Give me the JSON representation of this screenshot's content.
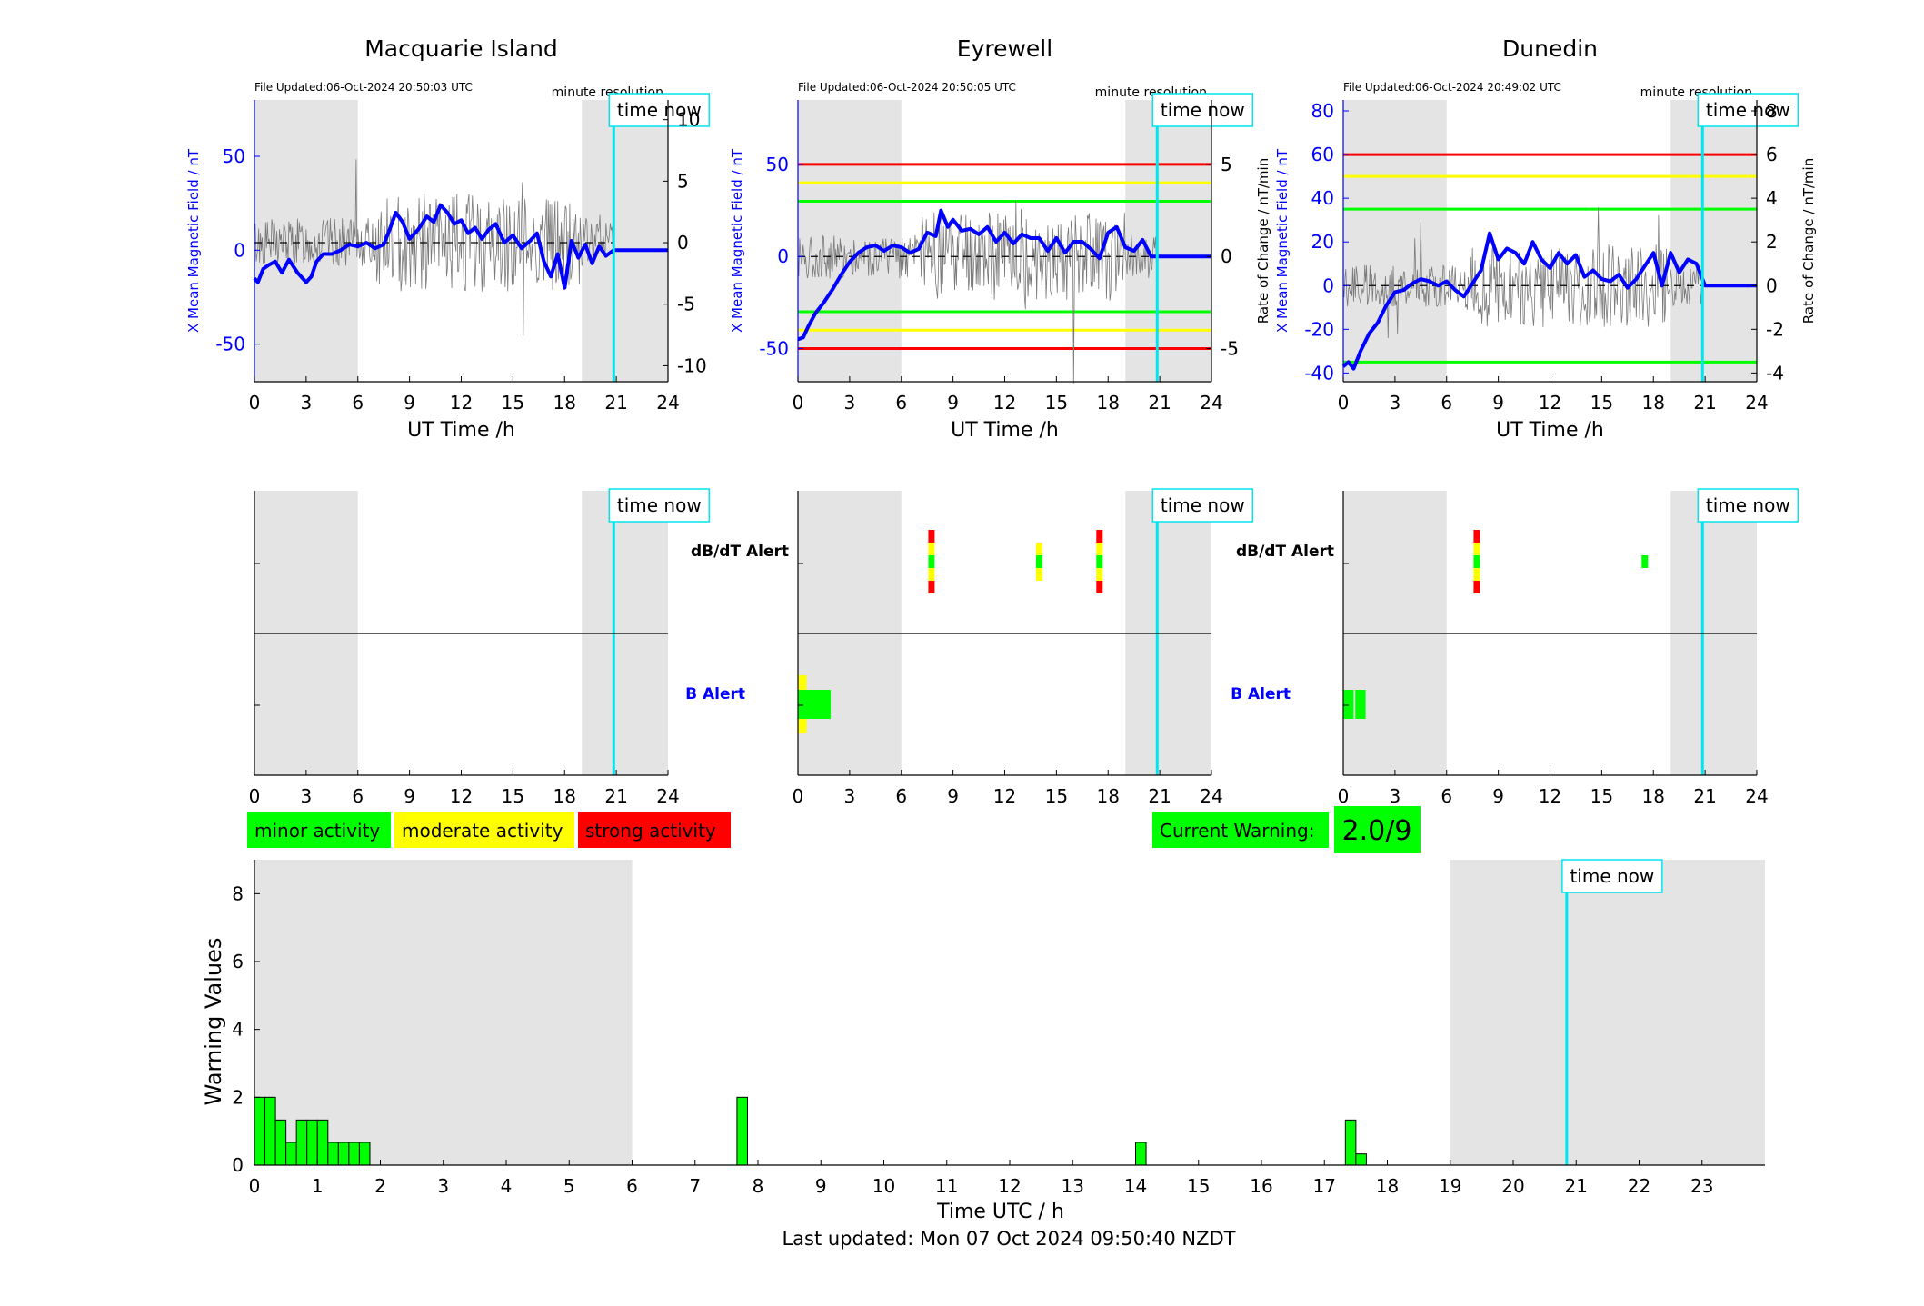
{
  "footer": "Last updated: Mon 07 Oct 2024 09:50:40 NZDT",
  "colors": {
    "night": "#e4e4e4",
    "mean_line": "#0000ff",
    "rate_line": "#7a7a7a",
    "now_line": "#00e5ee",
    "minor": "#00ff00",
    "moderate": "#ffff00",
    "strong": "#ff0000"
  },
  "time_now_label": "time now",
  "current_warning": {
    "label": "Current Warning:",
    "value": "2.0/9"
  },
  "legend": [
    "minor activity",
    "moderate activity",
    "strong activity"
  ],
  "chart_data": [
    {
      "type": "line",
      "title": "Macquarie Island",
      "file_updated": "File Updated:06-Oct-2024 20:50:03 UTC",
      "resolution": "minute resolution",
      "xlabel": "UT Time /h",
      "ylabel_left": "X Mean Magnetic Field / nT",
      "ylabel_right": "",
      "xlim": [
        0,
        24
      ],
      "xticks": [
        0,
        3,
        6,
        9,
        12,
        15,
        18,
        21,
        24
      ],
      "ylim": [
        -70,
        80
      ],
      "yticks": [
        -50,
        0,
        50
      ],
      "y2lim": [
        -11.3,
        11.6
      ],
      "y2ticks": [
        -10,
        -5,
        0,
        5,
        10
      ],
      "night_bands": [
        [
          0,
          6
        ],
        [
          19,
          24
        ]
      ],
      "time_now": 20.85,
      "thresholds": [],
      "series": [
        {
          "x": [
            0,
            0.2,
            0.5,
            0.8,
            1.2,
            1.6,
            2,
            2.5,
            3,
            3.3,
            3.6,
            4,
            4.5,
            5,
            5.5,
            6,
            6.5,
            7,
            7.5,
            7.8,
            8.2,
            8.6,
            9,
            9.5,
            10,
            10.4,
            10.8,
            11.2,
            11.6,
            12,
            12.4,
            12.8,
            13.2,
            13.6,
            14,
            14.5,
            15,
            15.5,
            16,
            16.4,
            16.8,
            17.2,
            17.6,
            18,
            18.4,
            18.8,
            19.2,
            19.6,
            20,
            20.4,
            20.85,
            24
          ],
          "y": [
            -15,
            -17,
            -10,
            -8,
            -6,
            -12,
            -5,
            -12,
            -17,
            -14,
            -6,
            -2,
            -2,
            0,
            3,
            2,
            4,
            1,
            3,
            10,
            20,
            15,
            6,
            11,
            18,
            15,
            24,
            20,
            14,
            16,
            9,
            12,
            6,
            11,
            14,
            4,
            8,
            1,
            5,
            9,
            -6,
            -14,
            -2,
            -20,
            5,
            -4,
            3,
            -7,
            2,
            -3,
            0,
            0
          ]
        }
      ],
      "rate_amplitude": 2.5
    },
    {
      "type": "line",
      "title": "Eyrewell",
      "file_updated": "File Updated:06-Oct-2024 20:50:05 UTC",
      "resolution": "minute resolution",
      "xlabel": "UT Time /h",
      "ylabel_left": "X Mean Magnetic Field / nT",
      "ylabel_right": "Rate of Change / nT/min",
      "xlim": [
        0,
        24
      ],
      "xticks": [
        0,
        3,
        6,
        9,
        12,
        15,
        18,
        21,
        24
      ],
      "ylim": [
        -68,
        85
      ],
      "yticks": [
        -50,
        0,
        50
      ],
      "y2lim": [
        -6.8,
        8.5
      ],
      "y2ticks": [
        -5,
        0,
        5
      ],
      "night_bands": [
        [
          0,
          6
        ],
        [
          19,
          24
        ]
      ],
      "time_now": 20.85,
      "thresholds": [
        {
          "y": 50,
          "color": "#ff0000"
        },
        {
          "y": 40,
          "color": "#ffff00"
        },
        {
          "y": 30,
          "color": "#00ff00"
        },
        {
          "y": -30,
          "color": "#00ff00"
        },
        {
          "y": -40,
          "color": "#ffff00"
        },
        {
          "y": -50,
          "color": "#ff0000"
        }
      ],
      "series": [
        {
          "x": [
            0,
            0.3,
            0.6,
            1,
            1.5,
            2,
            2.5,
            3,
            3.5,
            4,
            4.5,
            5,
            5.5,
            6,
            6.5,
            7,
            7.5,
            8,
            8.3,
            8.7,
            9,
            9.5,
            10,
            10.5,
            11,
            11.5,
            12,
            12.5,
            13,
            13.5,
            14,
            14.5,
            15,
            15.5,
            16,
            16.5,
            17,
            17.5,
            18,
            18.5,
            19,
            19.5,
            20,
            20.5,
            21,
            24
          ],
          "y": [
            -45,
            -44,
            -38,
            -31,
            -25,
            -18,
            -10,
            -3,
            2,
            5,
            6,
            3,
            6,
            5,
            2,
            4,
            13,
            11,
            25,
            16,
            20,
            14,
            15,
            12,
            16,
            8,
            13,
            7,
            12,
            10,
            10,
            3,
            10,
            2,
            8,
            8,
            4,
            -1,
            13,
            16,
            5,
            3,
            9,
            0,
            0,
            0
          ]
        }
      ],
      "rate_amplitude": 1.5
    },
    {
      "type": "line",
      "title": "Dunedin",
      "file_updated": "File Updated:06-Oct-2024 20:49:02 UTC",
      "resolution": "minute resolution",
      "xlabel": "UT Time /h",
      "ylabel_left": "X Mean Magnetic Field / nT",
      "ylabel_right": "Rate of Change / nT/min",
      "xlim": [
        0,
        24
      ],
      "xticks": [
        0,
        3,
        6,
        9,
        12,
        15,
        18,
        21,
        24
      ],
      "ylim": [
        -44,
        85
      ],
      "yticks": [
        -40,
        -20,
        0,
        20,
        40,
        60,
        80
      ],
      "y2lim": [
        -4.4,
        8.5
      ],
      "y2ticks": [
        -4,
        -2,
        0,
        2,
        4,
        6,
        8
      ],
      "night_bands": [
        [
          0,
          6
        ],
        [
          19,
          24
        ]
      ],
      "time_now": 20.85,
      "thresholds": [
        {
          "y": 60,
          "color": "#ff0000"
        },
        {
          "y": 50,
          "color": "#ffff00"
        },
        {
          "y": 35,
          "color": "#00ff00"
        },
        {
          "y": -35,
          "color": "#00ff00"
        }
      ],
      "series": [
        {
          "x": [
            0,
            0.3,
            0.6,
            1,
            1.5,
            2,
            2.5,
            3,
            3.5,
            4,
            4.5,
            5,
            5.5,
            6,
            6.5,
            7,
            7.5,
            8,
            8.5,
            9,
            9.5,
            10,
            10.5,
            11,
            11.5,
            12,
            12.5,
            13,
            13.5,
            14,
            14.5,
            15,
            15.5,
            16,
            16.5,
            17,
            17.5,
            18,
            18.5,
            19,
            19.5,
            20,
            20.5,
            21,
            24
          ],
          "y": [
            -37,
            -35,
            -38,
            -30,
            -22,
            -17,
            -9,
            -3,
            -2,
            1,
            3,
            2,
            0,
            2,
            -2,
            -5,
            1,
            7,
            24,
            12,
            17,
            15,
            10,
            20,
            12,
            8,
            15,
            10,
            14,
            4,
            7,
            3,
            2,
            5,
            -1,
            3,
            9,
            15,
            0,
            15,
            6,
            12,
            10,
            0,
            0
          ]
        }
      ],
      "rate_amplitude": 1.2
    }
  ],
  "alert_panels": [
    {
      "row_labels": [
        "dB/dT Alert",
        "B Alert"
      ],
      "db_alerts": [],
      "b_alerts": []
    },
    {
      "row_labels": [
        "dB/dT Alert",
        "B Alert"
      ],
      "db_alerts": [
        {
          "x": 7.75,
          "levels": [
            "strong",
            "moderate",
            "minor",
            "moderate",
            "strong"
          ]
        },
        {
          "x": 14.0,
          "levels": [
            "moderate",
            "minor",
            "moderate"
          ]
        },
        {
          "x": 17.5,
          "levels": [
            "strong",
            "moderate",
            "minor",
            "moderate",
            "strong"
          ]
        }
      ],
      "b_alerts": [
        {
          "x0": 0,
          "x1": 0.5,
          "level": "moderate"
        },
        {
          "x0": 0,
          "x1": 1.9,
          "level": "minor"
        }
      ]
    },
    {
      "row_labels": [
        "dB/dT Alert",
        "B Alert"
      ],
      "db_alerts": [
        {
          "x": 7.75,
          "levels": [
            "strong",
            "moderate",
            "minor",
            "moderate",
            "strong"
          ]
        },
        {
          "x": 17.5,
          "levels": [
            "minor"
          ]
        }
      ],
      "b_alerts": [
        {
          "x0": 0,
          "x1": 0.6,
          "level": "minor"
        },
        {
          "x0": 0.7,
          "x1": 1.3,
          "level": "minor"
        }
      ]
    }
  ],
  "warning_chart": {
    "type": "bar",
    "xlabel": "Time UTC / h",
    "ylabel": "Warning Values",
    "xlim": [
      0,
      24
    ],
    "xticks": [
      0,
      1,
      2,
      3,
      4,
      5,
      6,
      7,
      8,
      9,
      10,
      11,
      12,
      13,
      14,
      15,
      16,
      17,
      18,
      19,
      20,
      21,
      22,
      23
    ],
    "ylim": [
      0,
      9
    ],
    "yticks": [
      0,
      2,
      4,
      6,
      8
    ],
    "night_bands": [
      [
        0,
        6
      ],
      [
        19,
        24
      ]
    ],
    "time_now": 20.85,
    "bar_width": 0.1667,
    "bars": [
      {
        "x": 0.0,
        "v": 2
      },
      {
        "x": 0.1667,
        "v": 2
      },
      {
        "x": 0.3333,
        "v": 1.33
      },
      {
        "x": 0.5,
        "v": 0.67
      },
      {
        "x": 0.6667,
        "v": 1.33
      },
      {
        "x": 0.8333,
        "v": 1.33
      },
      {
        "x": 1.0,
        "v": 1.33
      },
      {
        "x": 1.1667,
        "v": 0.67
      },
      {
        "x": 1.3333,
        "v": 0.67
      },
      {
        "x": 1.5,
        "v": 0.67
      },
      {
        "x": 1.6667,
        "v": 0.67
      },
      {
        "x": 7.6667,
        "v": 2
      },
      {
        "x": 14.0,
        "v": 0.67
      },
      {
        "x": 17.3333,
        "v": 1.33
      },
      {
        "x": 17.5,
        "v": 0.33
      }
    ]
  }
}
